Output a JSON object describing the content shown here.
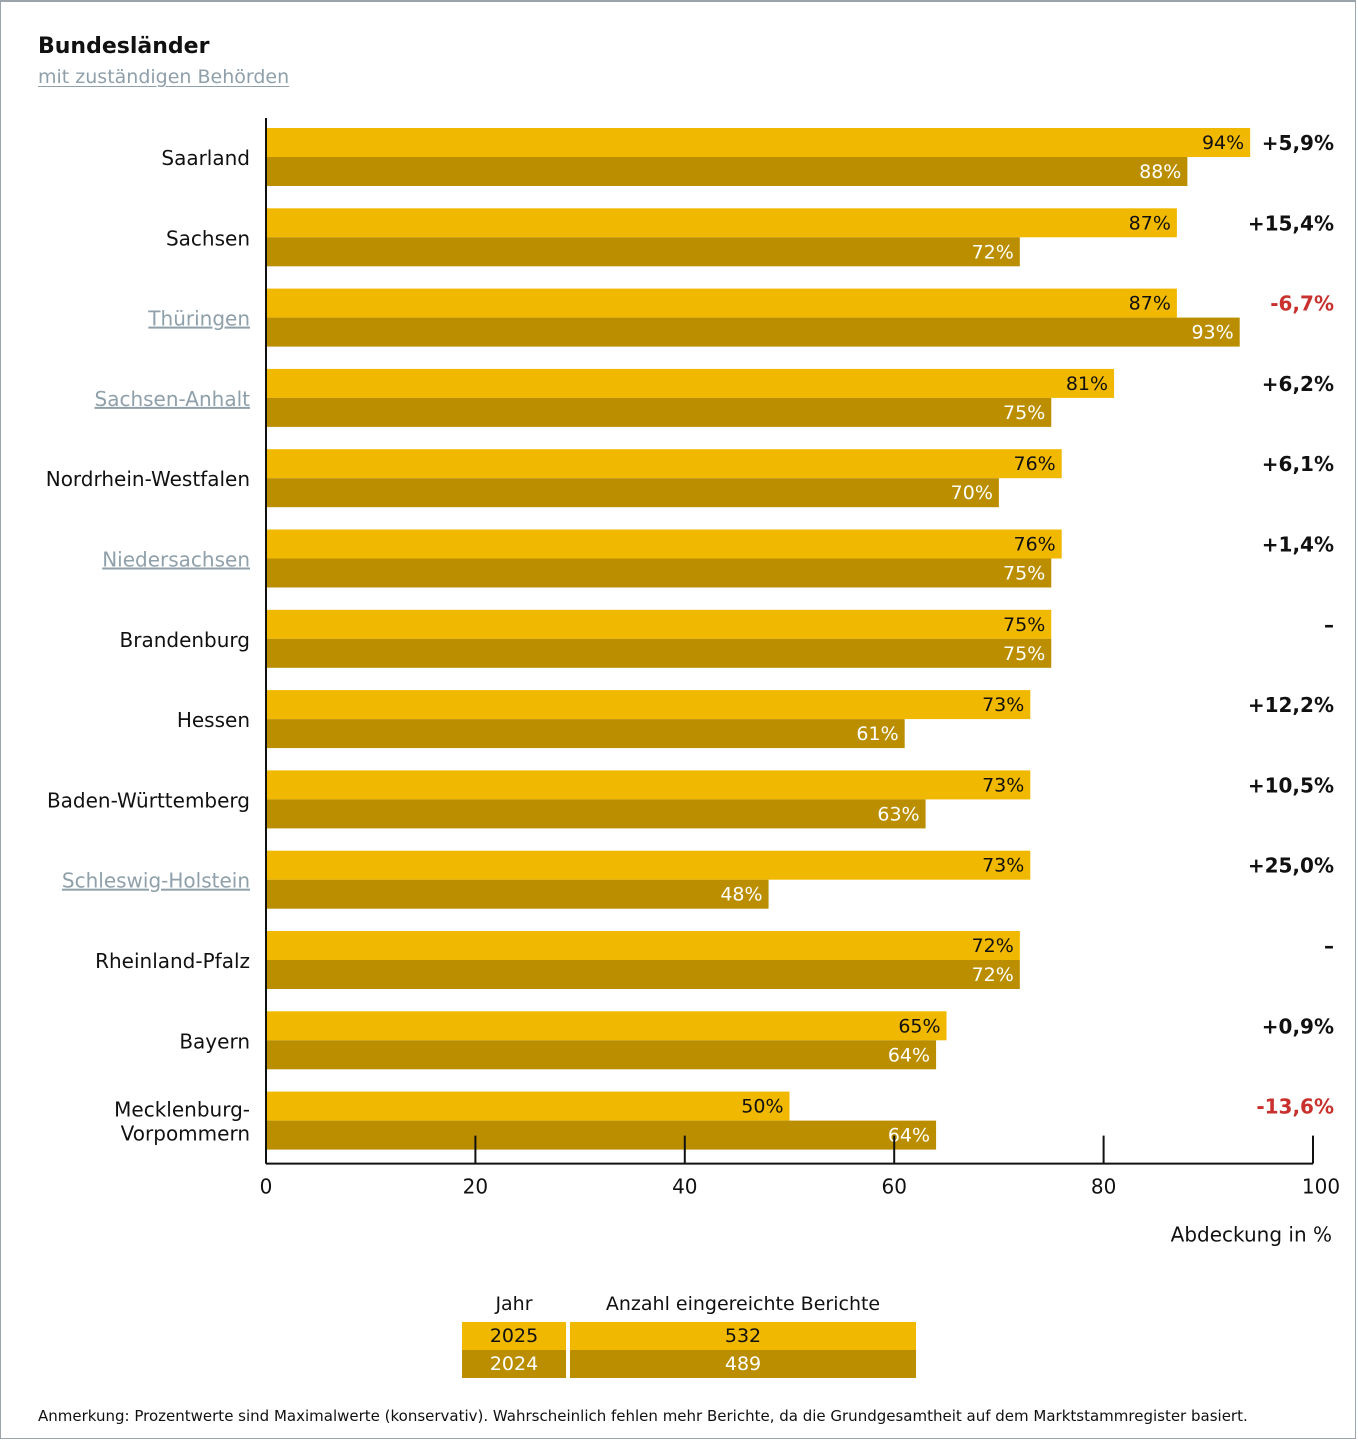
{
  "title": "Bundesländer",
  "subtitle": "mit zuständigen Behörden",
  "colors": {
    "series_2025": "#f1b800",
    "series_2024": "#bb8e00",
    "negative": "#c8312d",
    "linked_label": "#8fa0aa"
  },
  "chart_data": {
    "type": "bar",
    "orientation": "horizontal",
    "categories": [
      "Saarland",
      "Sachsen",
      "Thüringen",
      "Sachsen-Anhalt",
      "Nordrhein-Westfalen",
      "Niedersachsen",
      "Brandenburg",
      "Hessen",
      "Baden-Württemberg",
      "Schleswig-Holstein",
      "Rheinland-Pfalz",
      "Bayern",
      "Mecklenburg-Vorpommern"
    ],
    "category_lines": [
      [
        "Saarland"
      ],
      [
        "Sachsen"
      ],
      [
        "Thüringen"
      ],
      [
        "Sachsen-Anhalt"
      ],
      [
        "Nordrhein-Westfalen"
      ],
      [
        "Niedersachsen"
      ],
      [
        "Brandenburg"
      ],
      [
        "Hessen"
      ],
      [
        "Baden-Württemberg"
      ],
      [
        "Schleswig-Holstein"
      ],
      [
        "Rheinland-Pfalz"
      ],
      [
        "Bayern"
      ],
      [
        "Mecklenburg-",
        "Vorpommern"
      ]
    ],
    "linked_categories": [
      "Thüringen",
      "Sachsen-Anhalt",
      "Niedersachsen",
      "Schleswig-Holstein"
    ],
    "series": [
      {
        "name": "2025",
        "values": [
          94,
          87,
          87,
          81,
          76,
          76,
          75,
          73,
          73,
          73,
          72,
          65,
          50
        ]
      },
      {
        "name": "2024",
        "values": [
          88,
          72,
          93,
          75,
          70,
          75,
          75,
          61,
          63,
          48,
          72,
          64,
          64
        ]
      }
    ],
    "changes": [
      "+5,9%",
      "+15,4%",
      "-6,7%",
      "+6,2%",
      "+6,1%",
      "+1,4%",
      "–",
      "+12,2%",
      "+10,5%",
      "+25,0%",
      "–",
      "+0,9%",
      "-13,6%"
    ],
    "xlim": [
      0,
      100
    ],
    "xticks": [
      0,
      20,
      40,
      60,
      80,
      100
    ],
    "xlabel": "Abdeckung in %",
    "value_suffix": "%"
  },
  "legend": {
    "col_year": "Jahr",
    "col_reports": "Anzahl eingereichte Berichte",
    "rows": [
      {
        "year": "2025",
        "reports": "532"
      },
      {
        "year": "2024",
        "reports": "489"
      }
    ]
  },
  "note": "Anmerkung: Prozentwerte sind Maximalwerte (konservativ). Wahrscheinlich fehlen mehr Berichte, da die Grundgesamtheit auf dem Marktstammregister basiert."
}
